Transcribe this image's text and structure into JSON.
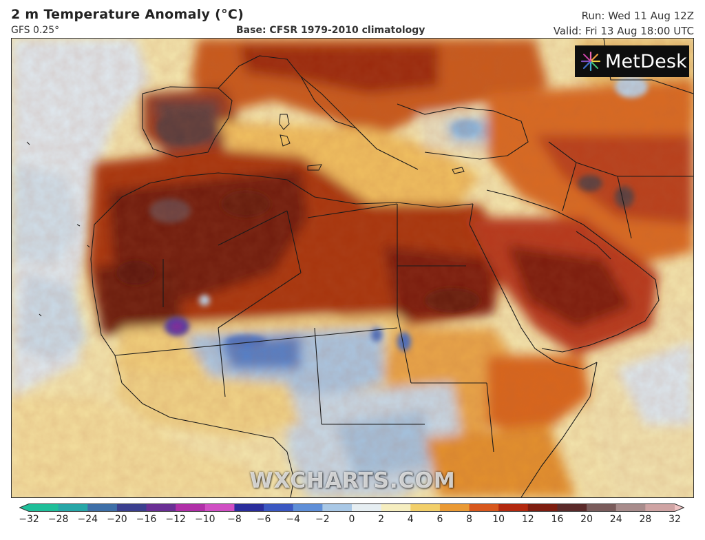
{
  "header": {
    "title": "2 m Temperature Anomaly (°C)",
    "model": "GFS 0.25°",
    "base": "Base: CFSR 1979-2010 climatology",
    "run": "Run: Wed 11 Aug 12Z",
    "valid": "Valid: Fri 13 Aug 18:00 UTC"
  },
  "logo": {
    "text": "MetDesk",
    "icon": "starburst-icon"
  },
  "watermark": "WXCHARTS.COM",
  "colorbar": {
    "ticks": [
      "−32",
      "−28",
      "−24",
      "−20",
      "−16",
      "−12",
      "−10",
      "−8",
      "−6",
      "−4",
      "−2",
      "0",
      "2",
      "4",
      "6",
      "8",
      "10",
      "12",
      "16",
      "20",
      "24",
      "28",
      "32"
    ],
    "colors": [
      "#1fbf9a",
      "#27a7a8",
      "#3e6fa8",
      "#3b3f8f",
      "#6a2f95",
      "#b02fa8",
      "#d04fc4",
      "#2a2d9c",
      "#3b58c2",
      "#5f8fd8",
      "#a9c8e6",
      "#e6eef2",
      "#f6eec0",
      "#f2cf6a",
      "#ea9a35",
      "#d8581d",
      "#b3290f",
      "#7e1d10",
      "#5a2a2a",
      "#7a5c5c",
      "#a88c8c",
      "#cfa4a4",
      "#f0c4c4"
    ]
  },
  "colors": {
    "ocean_cool": "#dce8f0",
    "ocean_warm": "#f2e4a8",
    "hot": "#7a1b0a",
    "very_hot": "#5b3a3a",
    "cool": "#a8c8e4",
    "cold": "#4a78c4"
  }
}
